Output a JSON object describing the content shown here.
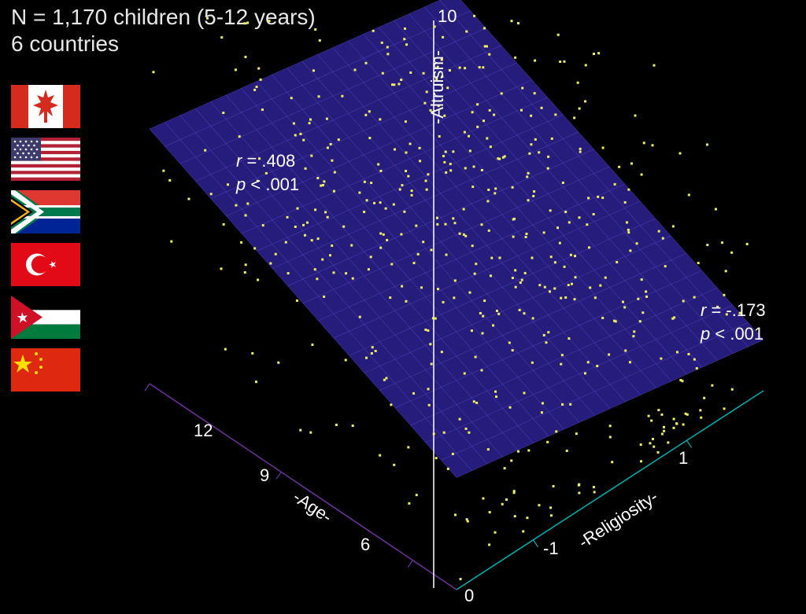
{
  "header": {
    "line1": "N = 1,170 children (5-12 years)",
    "line2": "6 countries"
  },
  "flags": [
    {
      "name": "canada"
    },
    {
      "name": "usa"
    },
    {
      "name": "south-africa"
    },
    {
      "name": "turkey"
    },
    {
      "name": "jordan"
    },
    {
      "name": "china"
    }
  ],
  "chart": {
    "type": "scatter-3d-regression-plane",
    "background_color": "#000000",
    "point_color": "#f0f060",
    "point_size": 3,
    "point_count": 520,
    "plane": {
      "fill_color": "#2a1f88",
      "fill_opacity": 0.9,
      "grid_color": "#5a4fd0",
      "grid_opacity": 0.6,
      "grid_divisions": 20
    },
    "axes": {
      "z": {
        "label": "-Altruism-",
        "color": "#ffffff",
        "range": [
          0,
          10
        ],
        "tick": "10"
      },
      "x": {
        "label": "-Age-",
        "color": "#7030a0",
        "range": [
          5,
          12
        ],
        "ticks": [
          "12",
          "9",
          "6"
        ]
      },
      "y": {
        "label": "-Religiosity-",
        "color": "#00b0b0",
        "range": [
          -2,
          2
        ],
        "ticks": [
          "1",
          "-1",
          "0"
        ]
      }
    },
    "stats": {
      "age": {
        "r": "r = .408",
        "p": "p < .001"
      },
      "relig": {
        "r": "r = -.173",
        "p": "p < .001"
      }
    }
  }
}
